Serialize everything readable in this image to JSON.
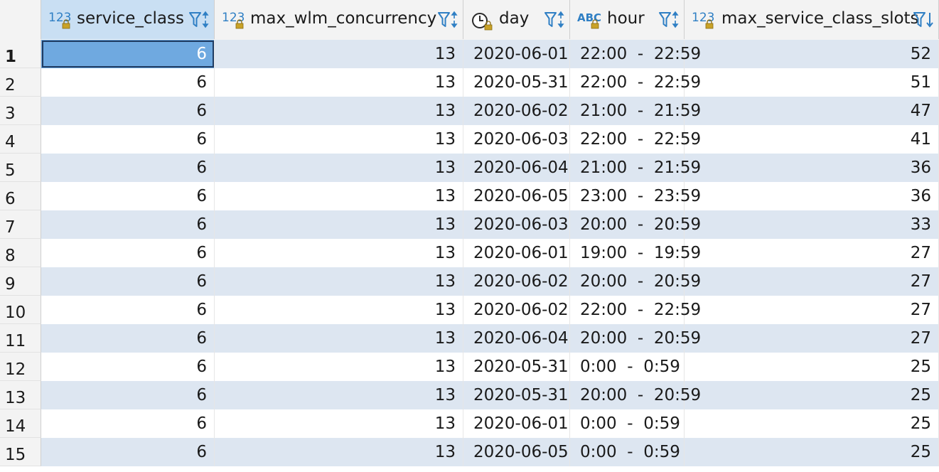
{
  "columns": [
    {
      "name": "service_class",
      "type_icon": "123",
      "type": "number-icon",
      "filter_icon": "filter-sort-icon",
      "align": "right"
    },
    {
      "name": "max_wlm_concurrency",
      "type_icon": "123",
      "type": "number-icon",
      "filter_icon": "filter-sort-icon",
      "align": "right"
    },
    {
      "name": "day",
      "type_icon": "",
      "type": "date-icon",
      "filter_icon": "filter-sort-icon",
      "align": "left"
    },
    {
      "name": "hour",
      "type_icon": "ABC",
      "type": "text-icon",
      "filter_icon": "filter-sort-icon",
      "align": "left"
    },
    {
      "name": "max_service_class_slots",
      "type_icon": "123",
      "type": "number-icon",
      "filter_icon": "filter-sort-desc-icon",
      "align": "right"
    }
  ],
  "rows": [
    {
      "n": "1",
      "cells": [
        "6",
        "13",
        "2020-06-01",
        "22:00  -  22:59",
        "52"
      ]
    },
    {
      "n": "2",
      "cells": [
        "6",
        "13",
        "2020-05-31",
        "22:00  -  22:59",
        "51"
      ]
    },
    {
      "n": "3",
      "cells": [
        "6",
        "13",
        "2020-06-02",
        "21:00  -  21:59",
        "47"
      ]
    },
    {
      "n": "4",
      "cells": [
        "6",
        "13",
        "2020-06-03",
        "22:00  -  22:59",
        "41"
      ]
    },
    {
      "n": "5",
      "cells": [
        "6",
        "13",
        "2020-06-04",
        "21:00  -  21:59",
        "36"
      ]
    },
    {
      "n": "6",
      "cells": [
        "6",
        "13",
        "2020-06-05",
        "23:00  -  23:59",
        "36"
      ]
    },
    {
      "n": "7",
      "cells": [
        "6",
        "13",
        "2020-06-03",
        "20:00  -  20:59",
        "33"
      ]
    },
    {
      "n": "8",
      "cells": [
        "6",
        "13",
        "2020-06-01",
        "19:00  -  19:59",
        "27"
      ]
    },
    {
      "n": "9",
      "cells": [
        "6",
        "13",
        "2020-06-02",
        "20:00  -  20:59",
        "27"
      ]
    },
    {
      "n": "10",
      "cells": [
        "6",
        "13",
        "2020-06-02",
        "22:00  -  22:59",
        "27"
      ]
    },
    {
      "n": "11",
      "cells": [
        "6",
        "13",
        "2020-06-04",
        "20:00  -  20:59",
        "27"
      ]
    },
    {
      "n": "12",
      "cells": [
        "6",
        "13",
        "2020-05-31",
        "0:00  -  0:59",
        "25"
      ]
    },
    {
      "n": "13",
      "cells": [
        "6",
        "13",
        "2020-05-31",
        "20:00  -  20:59",
        "25"
      ]
    },
    {
      "n": "14",
      "cells": [
        "6",
        "13",
        "2020-06-01",
        "0:00  -  0:59",
        "25"
      ]
    },
    {
      "n": "15",
      "cells": [
        "6",
        "13",
        "2020-06-05",
        "0:00  -  0:59",
        "25"
      ]
    }
  ],
  "selected": {
    "row": 0,
    "col": 0
  },
  "colors": {
    "header_bg": "#f3f3f3",
    "alt_row": "#dde6f1",
    "selected_cell": "#6fa9e0",
    "selected_header": "#c9dff3",
    "icon_blue": "#2f7fc4",
    "lock_gold": "#c9a227"
  }
}
